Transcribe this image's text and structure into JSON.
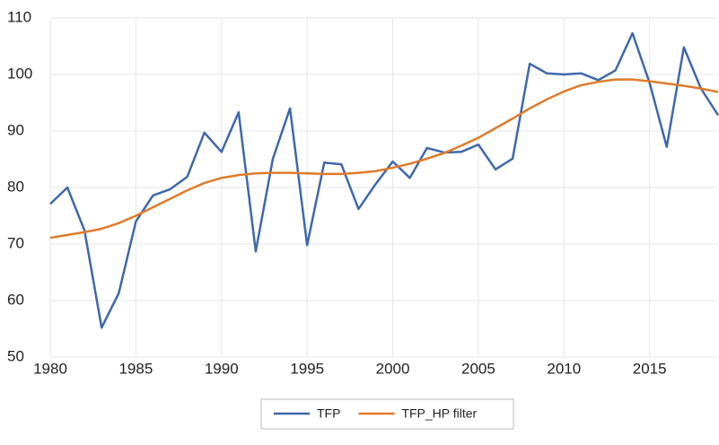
{
  "chart_data": {
    "type": "line",
    "x": [
      1980,
      1981,
      1982,
      1983,
      1984,
      1985,
      1986,
      1987,
      1988,
      1989,
      1990,
      1991,
      1992,
      1993,
      1994,
      1995,
      1996,
      1997,
      1998,
      1999,
      2000,
      2001,
      2002,
      2003,
      2004,
      2005,
      2006,
      2007,
      2008,
      2009,
      2010,
      2011,
      2012,
      2013,
      2014,
      2015,
      2016,
      2017,
      2018,
      2019
    ],
    "series": [
      {
        "name": "TFP",
        "color": "#3e68ab",
        "values": [
          77.1,
          80.0,
          72.4,
          55.2,
          61.3,
          74.0,
          78.6,
          79.7,
          81.9,
          89.7,
          86.3,
          93.3,
          68.7,
          85.1,
          94.0,
          69.8,
          84.4,
          84.1,
          76.2,
          80.6,
          84.6,
          81.7,
          87.0,
          86.2,
          86.3,
          87.6,
          83.2,
          85.1,
          101.9,
          100.2,
          100.0,
          100.2,
          99.0,
          100.7,
          107.3,
          98.5,
          87.2,
          104.8,
          97.5,
          92.8
        ]
      },
      {
        "name": "TFP_HP filter",
        "color": "#e07b2a",
        "values": [
          71.1,
          71.6,
          72.1,
          72.7,
          73.7,
          75.0,
          76.5,
          78.0,
          79.5,
          80.8,
          81.7,
          82.2,
          82.5,
          82.6,
          82.6,
          82.5,
          82.4,
          82.4,
          82.6,
          82.9,
          83.5,
          84.2,
          85.1,
          86.1,
          87.4,
          88.8,
          90.5,
          92.2,
          94.0,
          95.6,
          97.0,
          98.1,
          98.7,
          99.1,
          99.1,
          98.8,
          98.4,
          98.0,
          97.5,
          96.9
        ]
      }
    ],
    "xlim": [
      1980,
      2019
    ],
    "xticks": [
      1980,
      1985,
      1990,
      1995,
      2000,
      2005,
      2010,
      2015
    ],
    "ylim": [
      50,
      110
    ],
    "yticks": [
      50,
      60,
      70,
      80,
      90,
      100,
      110
    ],
    "grid": true,
    "legend": "bottom"
  }
}
